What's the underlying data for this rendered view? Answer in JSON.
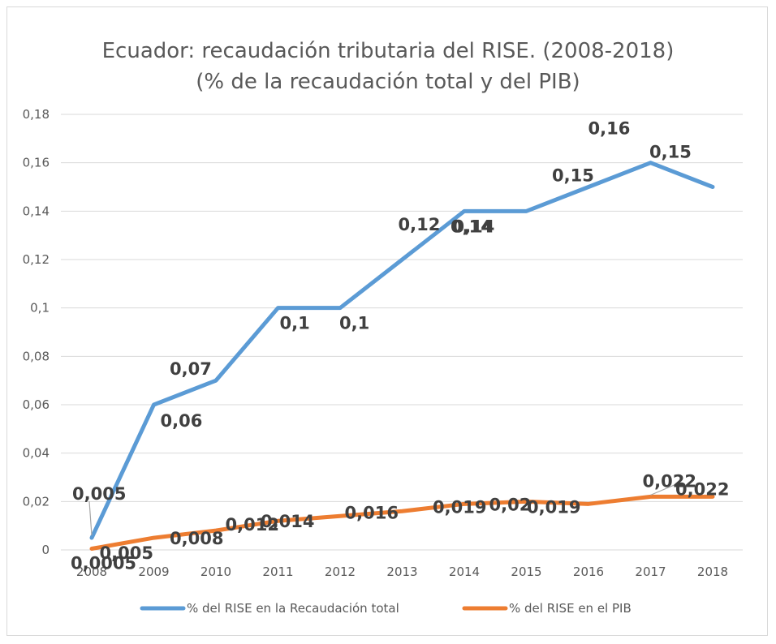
{
  "chart_data": {
    "type": "line",
    "title": "Ecuador: recaudación tributaria del RISE. (2008-2018)",
    "subtitle": "(% de la recaudación total y del PIB)",
    "xlabel": "",
    "ylabel": "",
    "ylim": [
      0,
      0.18
    ],
    "y_ticks": [
      "0",
      "0,02",
      "0,04",
      "0,06",
      "0,08",
      "0,1",
      "0,12",
      "0,14",
      "0,16",
      "0,18"
    ],
    "categories": [
      "2008",
      "2009",
      "2010",
      "2011",
      "2012",
      "2013",
      "2014",
      "2015",
      "2016",
      "2017",
      "2018"
    ],
    "grid": true,
    "legend_position": "bottom",
    "series": [
      {
        "name": "% del RISE en la Recaudación total",
        "color": "#5b9bd5",
        "values": [
          0.005,
          0.06,
          0.07,
          0.1,
          0.1,
          0.12,
          0.14,
          0.14,
          0.15,
          0.16,
          0.15
        ],
        "labels": [
          "0,005",
          "0,06",
          "0,07",
          "0,1",
          "0,1",
          "0,12",
          "0,14",
          "0,14",
          "0,15",
          "0,16",
          "0,15"
        ]
      },
      {
        "name": "% del RISE en el PIB",
        "color": "#ed7d31",
        "values": [
          0.0005,
          0.005,
          0.008,
          0.012,
          0.014,
          0.016,
          0.019,
          0.02,
          0.019,
          0.022,
          0.022
        ],
        "labels": [
          "0,0005",
          "0,005",
          "0,008",
          "0,012",
          "0,014",
          "0,016",
          "0,019",
          "0,02",
          "0,019",
          "0,022",
          "0,022"
        ]
      }
    ]
  }
}
